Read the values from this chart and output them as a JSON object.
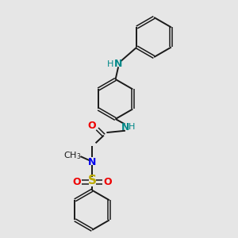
{
  "background_color": "#e6e6e6",
  "bond_color": "#1a1a1a",
  "N_color": "#0000ee",
  "O_color": "#ee0000",
  "S_color": "#bbaa00",
  "NH_color": "#008888",
  "figsize": [
    3.0,
    3.0
  ],
  "dpi": 100,
  "xlim": [
    0,
    10
  ],
  "ylim": [
    0,
    10
  ]
}
